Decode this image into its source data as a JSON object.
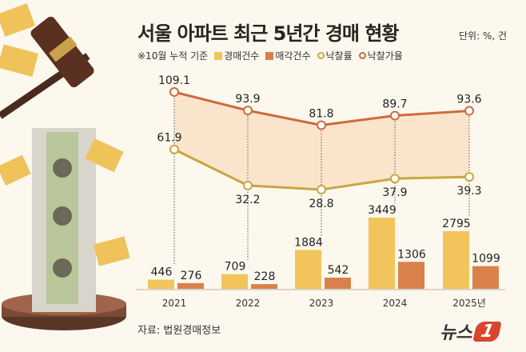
{
  "title": "서울 아파트 최근 5년간 경매 현황",
  "unit": "단위: %, 건",
  "note": "※10월 누적 기준",
  "source": "자료: 법원경매정보",
  "logo": {
    "text": "뉴스",
    "mark": "1"
  },
  "colors": {
    "auctions": "#f2c55c",
    "sales": "#d9814a",
    "sale_rate": "#c9a640",
    "price_rate": "#cf6a3b",
    "band": "#fbe4cc",
    "background": "#fcf8ee"
  },
  "chart_data": {
    "type": "bar+line",
    "categories": [
      "2021",
      "2022",
      "2023",
      "2024",
      "2025년"
    ],
    "legend": [
      "경매건수",
      "매각건수",
      "낙찰률",
      "낙찰가율"
    ],
    "legend_placement": "top",
    "grid": false,
    "series": [
      {
        "name": "경매건수",
        "type": "bar",
        "values": [
          446,
          709,
          1884,
          3449,
          2795
        ]
      },
      {
        "name": "매각건수",
        "type": "bar",
        "values": [
          276,
          228,
          542,
          1306,
          1099
        ]
      },
      {
        "name": "낙찰률",
        "type": "line",
        "values": [
          61.9,
          32.2,
          28.8,
          37.9,
          39.3
        ]
      },
      {
        "name": "낙찰가율",
        "type": "line",
        "values": [
          109.1,
          93.9,
          81.8,
          89.7,
          93.6
        ]
      }
    ]
  }
}
